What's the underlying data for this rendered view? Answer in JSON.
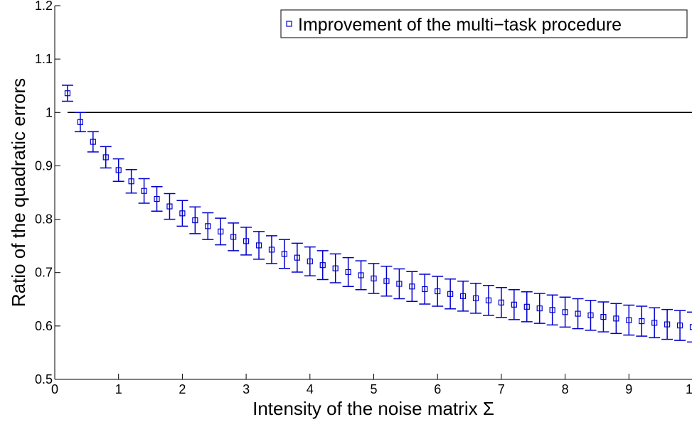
{
  "chart_data": {
    "type": "scatter",
    "title": "",
    "xlabel": "Intensity of the noise matrix Σ",
    "ylabel": "Ratio of the quadratic errors",
    "xlim": [
      0,
      10
    ],
    "ylim": [
      0.5,
      1.2
    ],
    "xticks": [
      "0",
      "1",
      "2",
      "3",
      "4",
      "5",
      "6",
      "7",
      "8",
      "9",
      "10"
    ],
    "yticks": [
      "0.5",
      "0.6",
      "0.7",
      "0.8",
      "0.9",
      "1",
      "1.1",
      "1.2"
    ],
    "grid": false,
    "legend_position": "top-right",
    "reference_line": {
      "y": 1,
      "color": "#000000"
    },
    "series": [
      {
        "name": "Improvement of the multi−task procedure",
        "color": "#0000cc",
        "marker": "square",
        "x": [
          0.2,
          0.4,
          0.6,
          0.8,
          1.0,
          1.2,
          1.4,
          1.6,
          1.8,
          2.0,
          2.2,
          2.4,
          2.6,
          2.8,
          3.0,
          3.2,
          3.4,
          3.6,
          3.8,
          4.0,
          4.2,
          4.4,
          4.6,
          4.8,
          5.0,
          5.2,
          5.4,
          5.6,
          5.8,
          6.0,
          6.2,
          6.4,
          6.6,
          6.8,
          7.0,
          7.2,
          7.4,
          7.6,
          7.8,
          8.0,
          8.2,
          8.4,
          8.6,
          8.8,
          9.0,
          9.2,
          9.4,
          9.6,
          9.8,
          10.0
        ],
        "y": [
          1.036,
          0.982,
          0.945,
          0.916,
          0.892,
          0.871,
          0.853,
          0.838,
          0.824,
          0.811,
          0.798,
          0.787,
          0.777,
          0.767,
          0.759,
          0.751,
          0.743,
          0.735,
          0.728,
          0.721,
          0.714,
          0.708,
          0.701,
          0.695,
          0.689,
          0.684,
          0.679,
          0.674,
          0.669,
          0.665,
          0.66,
          0.656,
          0.652,
          0.648,
          0.644,
          0.64,
          0.636,
          0.633,
          0.63,
          0.626,
          0.623,
          0.62,
          0.617,
          0.614,
          0.611,
          0.609,
          0.606,
          0.603,
          0.601,
          0.598
        ],
        "error": [
          0.015,
          0.018,
          0.019,
          0.02,
          0.021,
          0.022,
          0.023,
          0.023,
          0.024,
          0.024,
          0.025,
          0.025,
          0.025,
          0.026,
          0.026,
          0.026,
          0.026,
          0.027,
          0.027,
          0.027,
          0.027,
          0.027,
          0.027,
          0.027,
          0.028,
          0.028,
          0.028,
          0.028,
          0.028,
          0.028,
          0.028,
          0.028,
          0.028,
          0.028,
          0.028,
          0.028,
          0.028,
          0.028,
          0.028,
          0.028,
          0.028,
          0.028,
          0.028,
          0.028,
          0.028,
          0.028,
          0.028,
          0.028,
          0.028,
          0.028
        ]
      }
    ]
  }
}
